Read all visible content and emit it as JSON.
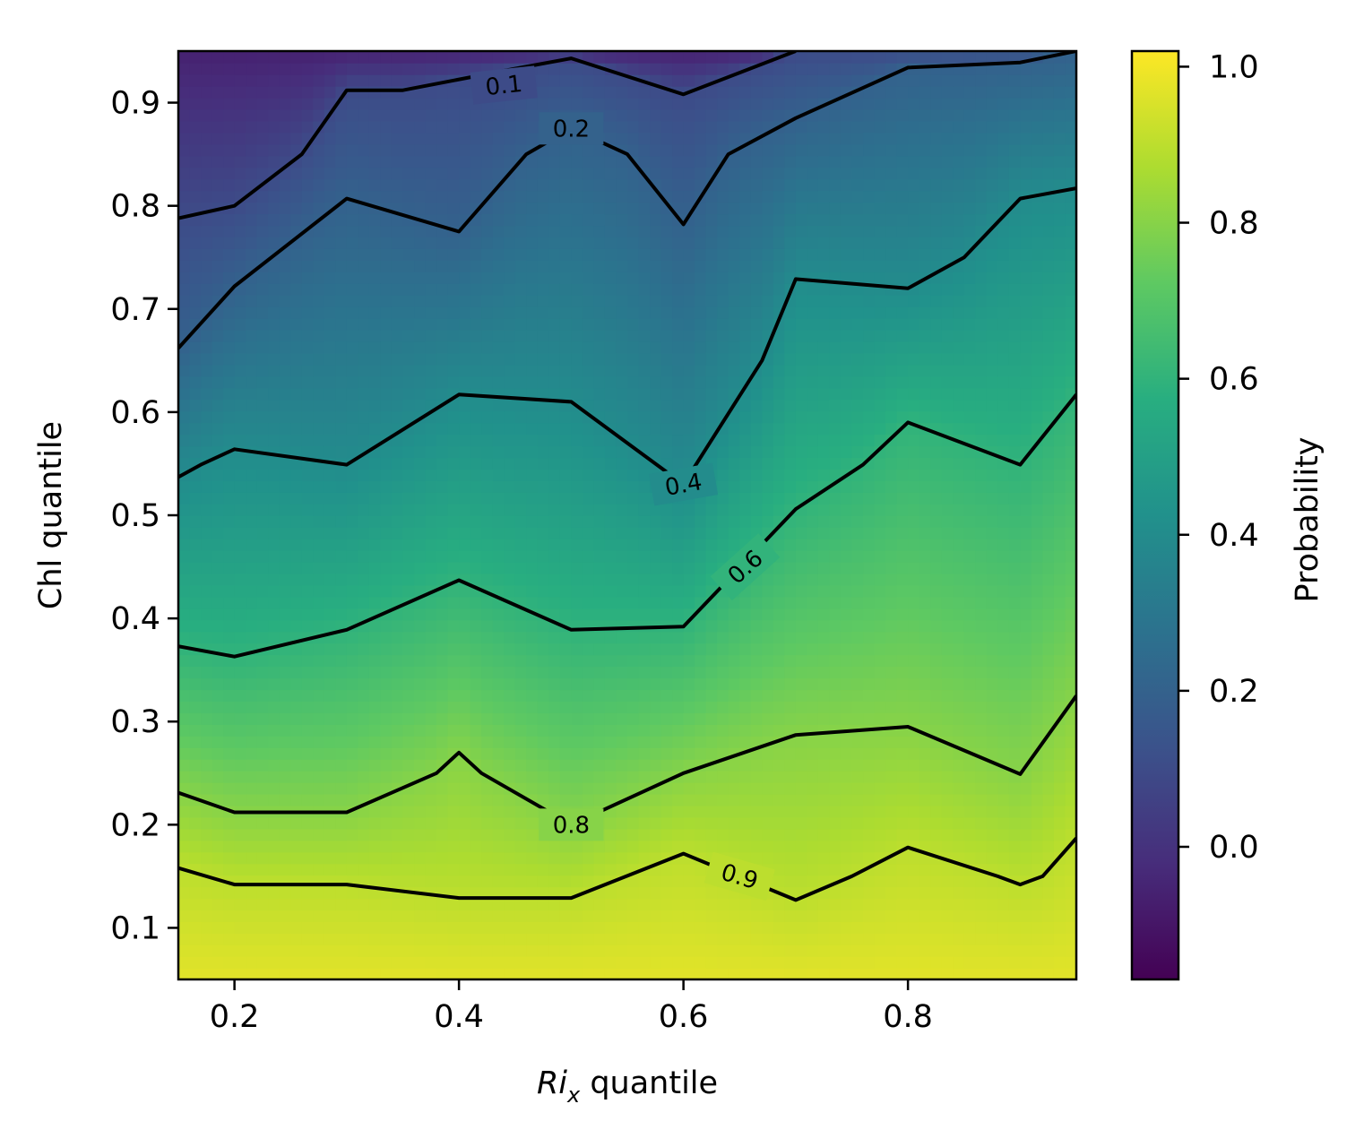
{
  "chart_data": {
    "type": "heatmap",
    "subtype": "filled contour with labeled contour lines",
    "title": "",
    "xlabel_main": "Ri",
    "xlabel_sub": "x",
    "xlabel_rest": " quantile",
    "ylabel": "Chl quantile",
    "xlim": [
      0.15,
      0.95
    ],
    "ylim": [
      0.05,
      0.95
    ],
    "x_ticks": [
      0.2,
      0.4,
      0.6,
      0.8
    ],
    "x_tick_labels": [
      "0.2",
      "0.4",
      "0.6",
      "0.8"
    ],
    "y_ticks": [
      0.1,
      0.2,
      0.3,
      0.4,
      0.5,
      0.6,
      0.7,
      0.8,
      0.9
    ],
    "y_tick_labels": [
      "0.1",
      "0.2",
      "0.3",
      "0.4",
      "0.5",
      "0.6",
      "0.7",
      "0.8",
      "0.9"
    ],
    "colormap": "viridis",
    "colorbar": {
      "label": "Probability",
      "range": [
        -0.17,
        1.02
      ],
      "ticks": [
        0.0,
        0.2,
        0.4,
        0.6,
        0.8,
        1.0
      ],
      "tick_labels": [
        "0.0",
        "0.2",
        "0.4",
        "0.6",
        "0.8",
        "1.0"
      ]
    },
    "grid": false,
    "contour_line_color": "#000000",
    "contours": [
      {
        "level": 0.1,
        "label": "0.1",
        "points": [
          [
            0.15,
            0.788
          ],
          [
            0.2,
            0.8
          ],
          [
            0.26,
            0.85
          ],
          [
            0.3,
            0.912
          ],
          [
            0.35,
            0.912
          ],
          [
            0.45,
            0.933
          ],
          [
            0.5,
            0.943
          ],
          [
            0.6,
            0.908
          ],
          [
            0.7,
            0.95
          ]
        ]
      },
      {
        "level": 0.2,
        "label": "0.2",
        "points": [
          [
            0.15,
            0.662
          ],
          [
            0.2,
            0.722
          ],
          [
            0.3,
            0.807
          ],
          [
            0.4,
            0.775
          ],
          [
            0.46,
            0.85
          ],
          [
            0.5,
            0.875
          ],
          [
            0.55,
            0.85
          ],
          [
            0.6,
            0.782
          ],
          [
            0.64,
            0.85
          ],
          [
            0.7,
            0.885
          ],
          [
            0.8,
            0.934
          ],
          [
            0.9,
            0.939
          ],
          [
            0.95,
            0.95
          ]
        ]
      },
      {
        "level": 0.4,
        "label": "0.4",
        "points": [
          [
            0.15,
            0.537
          ],
          [
            0.17,
            0.549
          ],
          [
            0.2,
            0.564
          ],
          [
            0.3,
            0.549
          ],
          [
            0.4,
            0.617
          ],
          [
            0.5,
            0.61
          ],
          [
            0.6,
            0.53
          ],
          [
            0.67,
            0.65
          ],
          [
            0.7,
            0.729
          ],
          [
            0.8,
            0.72
          ],
          [
            0.85,
            0.75
          ],
          [
            0.9,
            0.807
          ],
          [
            0.95,
            0.817
          ]
        ]
      },
      {
        "level": 0.6,
        "label": "0.6",
        "points": [
          [
            0.15,
            0.373
          ],
          [
            0.2,
            0.363
          ],
          [
            0.3,
            0.389
          ],
          [
            0.4,
            0.437
          ],
          [
            0.5,
            0.389
          ],
          [
            0.6,
            0.392
          ],
          [
            0.7,
            0.506
          ],
          [
            0.76,
            0.549
          ],
          [
            0.8,
            0.59
          ],
          [
            0.9,
            0.549
          ],
          [
            0.95,
            0.617
          ]
        ]
      },
      {
        "level": 0.8,
        "label": "0.8",
        "points": [
          [
            0.15,
            0.231
          ],
          [
            0.2,
            0.212
          ],
          [
            0.3,
            0.212
          ],
          [
            0.38,
            0.25
          ],
          [
            0.4,
            0.27
          ],
          [
            0.42,
            0.25
          ],
          [
            0.5,
            0.2
          ],
          [
            0.6,
            0.25
          ],
          [
            0.7,
            0.287
          ],
          [
            0.8,
            0.295
          ],
          [
            0.9,
            0.249
          ],
          [
            0.95,
            0.325
          ]
        ]
      },
      {
        "level": 0.9,
        "label": "0.9",
        "points": [
          [
            0.15,
            0.158
          ],
          [
            0.2,
            0.142
          ],
          [
            0.3,
            0.142
          ],
          [
            0.4,
            0.129
          ],
          [
            0.5,
            0.129
          ],
          [
            0.6,
            0.172
          ],
          [
            0.7,
            0.127
          ],
          [
            0.75,
            0.15
          ],
          [
            0.8,
            0.178
          ],
          [
            0.88,
            0.15
          ],
          [
            0.9,
            0.142
          ],
          [
            0.92,
            0.15
          ],
          [
            0.95,
            0.187
          ]
        ]
      }
    ]
  }
}
